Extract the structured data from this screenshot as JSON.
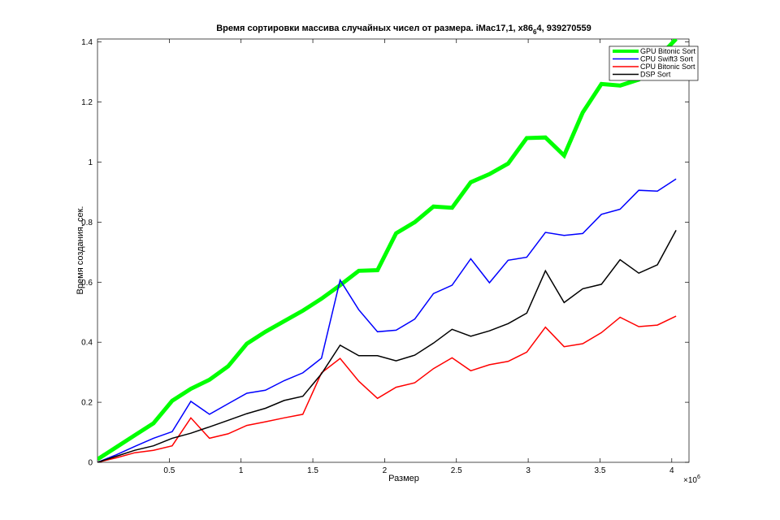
{
  "chart_data": {
    "type": "line",
    "title_main": "Время сортировки массива случайных чисел от размера. iMac17,1, x86",
    "title_sub": "6",
    "title_tail": "4, 939270559",
    "xlabel": "Размер",
    "ylabel": "Время создания, сек.",
    "x_multiplier_base": "×10",
    "x_multiplier_exp": "6",
    "xlim": [
      0,
      4.12
    ],
    "ylim": [
      0,
      1.41
    ],
    "xticks": [
      0.5,
      1,
      1.5,
      2,
      2.5,
      3,
      3.5,
      4
    ],
    "xtick_labels": [
      "0.5",
      "1",
      "1.5",
      "2",
      "2.5",
      "3",
      "3.5",
      "4"
    ],
    "yticks": [
      0,
      0.2,
      0.4,
      0.6,
      0.8,
      1,
      1.2,
      1.4
    ],
    "ytick_labels": [
      "0",
      "0.2",
      "0.4",
      "0.6",
      "0.8",
      "1",
      "1.2",
      "1.4"
    ],
    "grid": false,
    "legend_position": "top-right",
    "x": [
      0.0,
      0.13,
      0.26,
      0.39,
      0.52,
      0.65,
      0.78,
      0.91,
      1.04,
      1.17,
      1.3,
      1.43,
      1.56,
      1.69,
      1.82,
      1.95,
      2.08,
      2.21,
      2.34,
      2.47,
      2.6,
      2.73,
      2.86,
      2.99,
      3.12,
      3.25,
      3.38,
      3.51,
      3.64,
      3.77,
      3.9,
      4.03
    ],
    "series": [
      {
        "name": "GPU Bitonic Sort",
        "color": "#00ff00",
        "width": 5,
        "values": [
          0.01,
          0.05,
          0.09,
          0.13,
          0.205,
          0.245,
          0.275,
          0.32,
          0.395,
          0.435,
          0.47,
          0.505,
          0.545,
          0.59,
          0.638,
          0.64,
          0.763,
          0.8,
          0.852,
          0.848,
          0.933,
          0.96,
          0.995,
          1.08,
          1.082,
          1.022,
          1.165,
          1.26,
          1.255,
          1.275,
          1.345,
          1.41
        ]
      },
      {
        "name": "CPU Swift3 Sort",
        "color": "#0000ff",
        "width": 1.5,
        "values": [
          0.0,
          0.025,
          0.053,
          0.08,
          0.102,
          0.203,
          0.16,
          0.195,
          0.23,
          0.24,
          0.272,
          0.298,
          0.347,
          0.607,
          0.508,
          0.435,
          0.44,
          0.477,
          0.562,
          0.59,
          0.678,
          0.598,
          0.673,
          0.683,
          0.766,
          0.756,
          0.762,
          0.826,
          0.843,
          0.906,
          0.903,
          0.944
        ]
      },
      {
        "name": "CPU Bitonic Sort",
        "color": "#ff0000",
        "width": 1.5,
        "values": [
          0.0,
          0.015,
          0.032,
          0.04,
          0.055,
          0.148,
          0.08,
          0.095,
          0.123,
          0.135,
          0.148,
          0.16,
          0.298,
          0.346,
          0.27,
          0.213,
          0.25,
          0.265,
          0.312,
          0.348,
          0.305,
          0.325,
          0.336,
          0.367,
          0.45,
          0.385,
          0.395,
          0.432,
          0.483,
          0.452,
          0.457,
          0.487
        ]
      },
      {
        "name": "DSP Sort",
        "color": "#000000",
        "width": 1.5,
        "values": [
          0.0,
          0.02,
          0.04,
          0.055,
          0.08,
          0.097,
          0.118,
          0.14,
          0.162,
          0.18,
          0.206,
          0.22,
          0.295,
          0.39,
          0.355,
          0.355,
          0.338,
          0.357,
          0.397,
          0.443,
          0.42,
          0.438,
          0.462,
          0.497,
          0.638,
          0.532,
          0.578,
          0.593,
          0.675,
          0.63,
          0.658,
          0.773
        ]
      }
    ]
  }
}
